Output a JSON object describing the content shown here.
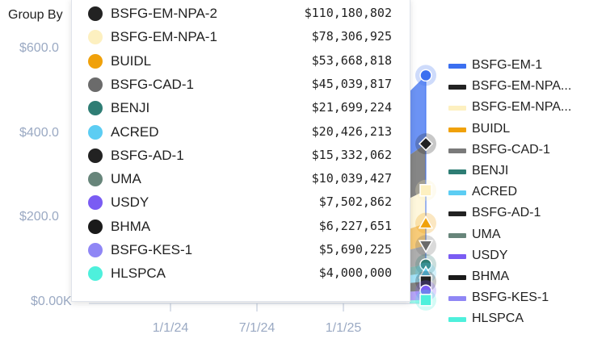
{
  "header": {
    "group_by": "Group By"
  },
  "chart_data": {
    "type": "area",
    "yaxis": {
      "ticks": [
        "$0.00K",
        "$200.0",
        "$400.0",
        "$600.0"
      ],
      "tick_values": [
        0,
        200,
        400,
        600
      ],
      "ylim": [
        0,
        650
      ]
    },
    "xaxis": {
      "ticks": [
        "1/1/24",
        "7/1/24",
        "1/1/25"
      ]
    },
    "stacked": true,
    "legend_position": "right",
    "tooltip": {
      "rows": [
        {
          "name": "BSFG-EM-NPA-2",
          "value": "$110,180,802",
          "color": "#222222"
        },
        {
          "name": "BSFG-EM-NPA-1",
          "value": "$78,306,925",
          "color": "#fdf0c0"
        },
        {
          "name": "BUIDL",
          "value": "$53,668,818",
          "color": "#f0a10a"
        },
        {
          "name": "BSFG-CAD-1",
          "value": "$45,039,817",
          "color": "#6b6b6b"
        },
        {
          "name": "BENJI",
          "value": "$21,699,224",
          "color": "#2e7d74"
        },
        {
          "name": "ACRED",
          "value": "$20,426,213",
          "color": "#5ccdf3"
        },
        {
          "name": "BSFG-AD-1",
          "value": "$15,332,062",
          "color": "#222222"
        },
        {
          "name": "UMA",
          "value": "$10,039,427",
          "color": "#67857a"
        },
        {
          "name": "USDY",
          "value": "$7,502,862",
          "color": "#7a5cf3"
        },
        {
          "name": "BHMA",
          "value": "$6,227,651",
          "color": "#1a1a1a"
        },
        {
          "name": "BSFG-KES-1",
          "value": "$5,690,225",
          "color": "#8f86f5"
        },
        {
          "name": "HLSPCA",
          "value": "$4,000,000",
          "color": "#4ef0dc"
        }
      ]
    },
    "legend": [
      {
        "name": "BSFG-EM-1",
        "color": "#3b6ff0"
      },
      {
        "name": "BSFG-EM-NPA...",
        "color": "#222222"
      },
      {
        "name": "BSFG-EM-NPA...",
        "color": "#fdf0c0"
      },
      {
        "name": "BUIDL",
        "color": "#f0a10a"
      },
      {
        "name": "BSFG-CAD-1",
        "color": "#7a7a7a"
      },
      {
        "name": "BENJI",
        "color": "#2e7d74"
      },
      {
        "name": "ACRED",
        "color": "#5ccdf3"
      },
      {
        "name": "BSFG-AD-1",
        "color": "#222222"
      },
      {
        "name": "UMA",
        "color": "#67857a"
      },
      {
        "name": "USDY",
        "color": "#7a5cf3"
      },
      {
        "name": "BHMA",
        "color": "#1a1a1a"
      },
      {
        "name": "BSFG-KES-1",
        "color": "#8f86f5"
      },
      {
        "name": "HLSPCA",
        "color": "#4ef0dc"
      }
    ],
    "hover_markers": [
      {
        "series": "BSFG-EM-1",
        "value": 540,
        "shape": "circle",
        "color": "#3b6ff0"
      },
      {
        "series": "BSFG-EM-NPA-2",
        "value": 378,
        "shape": "diamond",
        "color": "#222222"
      },
      {
        "series": "BSFG-EM-NPA-1",
        "value": 268,
        "shape": "square",
        "color": "#fdf0c0"
      },
      {
        "series": "BUIDL",
        "value": 190,
        "shape": "triangle-up",
        "color": "#f0a10a"
      },
      {
        "series": "BSFG-CAD-1",
        "value": 137,
        "shape": "triangle-down",
        "color": "#6b6b6b"
      },
      {
        "series": "BENJI",
        "value": 92,
        "shape": "circle",
        "color": "#2e7d74"
      },
      {
        "series": "ACRED",
        "value": 72,
        "shape": "triangle-up",
        "color": "#5ccdf3"
      },
      {
        "series": "BSFG-AD-1",
        "value": 52,
        "shape": "square",
        "color": "#222222"
      },
      {
        "series": "USDY",
        "value": 30,
        "shape": "circle",
        "color": "#7a5cf3"
      },
      {
        "series": "HLSPCA",
        "value": 8,
        "shape": "square",
        "color": "#4ef0dc"
      }
    ]
  }
}
